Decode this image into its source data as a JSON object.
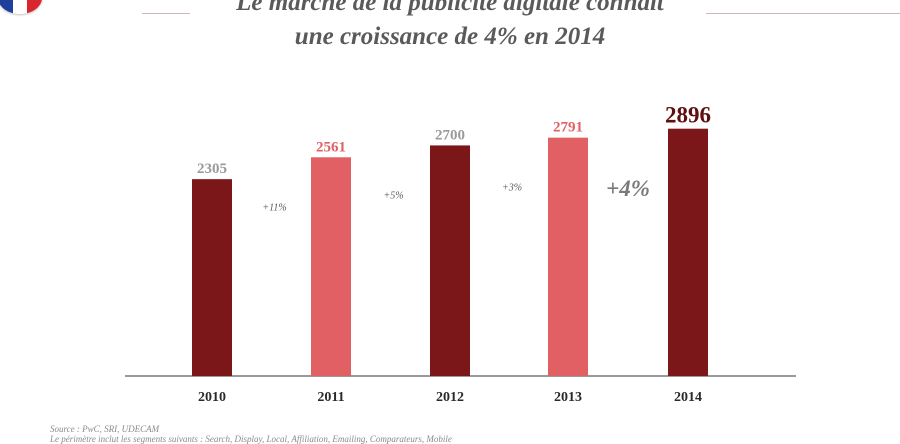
{
  "flag": {
    "colors": [
      "#1f3f9c",
      "#ffffff",
      "#d8262c"
    ]
  },
  "title": {
    "line1": "Le marché de la publicité digitale connaît",
    "line2": "une croissance de 4% en 2014"
  },
  "chart_data": {
    "type": "bar",
    "categories": [
      "2010",
      "2011",
      "2012",
      "2013",
      "2014"
    ],
    "values": [
      2305,
      2561,
      2700,
      2791,
      2896
    ],
    "value_labels": [
      "2305",
      "2561",
      "2700",
      "2791",
      "2896"
    ],
    "bar_colors": [
      "#7b1719",
      "#e06063",
      "#7b1719",
      "#e06063",
      "#7b1719"
    ],
    "value_label_colors": [
      "#9a9a9a",
      "#e06063",
      "#9a9a9a",
      "#e06063",
      "#5e0f10"
    ],
    "growth_labels": [
      "+11%",
      "+5%",
      "+3%",
      "+4%"
    ],
    "title": "",
    "xlabel": "",
    "ylabel": "",
    "ylim": [
      0,
      3000
    ],
    "grid": false,
    "legend": "none"
  },
  "footer": {
    "source": "Source : PwC, SRI, UDECAM",
    "scope": "Le périmètre inclut les segments suivants : Search, Display, Local, Affiliation, Emailing, Comparateurs, Mobile"
  }
}
